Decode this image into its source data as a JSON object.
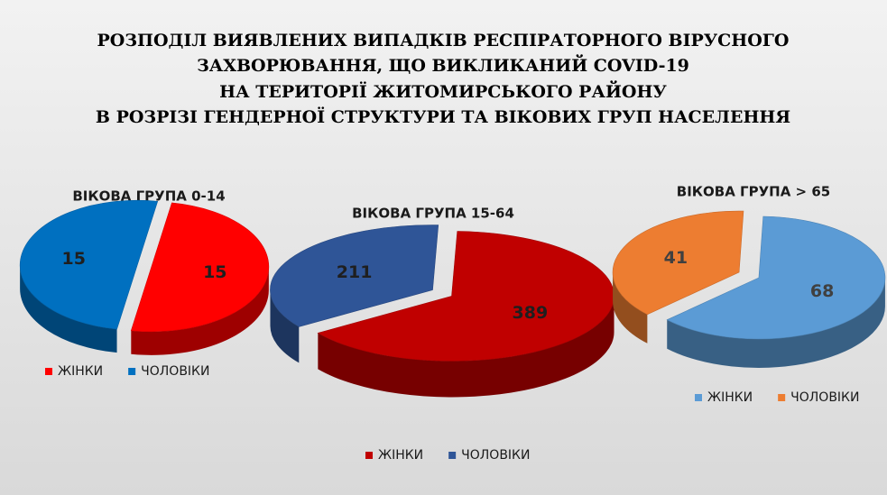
{
  "title": [
    "РОЗПОДІЛ ВИЯВЛЕНИХ ВИПАДКІВ РЕСПІРАТОРНОГО ВІРУСНОГО",
    "ЗАХВОРЮВАННЯ, ЩО ВИКЛИКАНИЙ COVID-19",
    "НА ТЕРИТОРІЇ ЖИТОМИРСЬКОГО РАЙОНУ",
    "В РОЗРІЗІ ГЕНДЕРНОЇ СТРУКТУРИ ТА ВІКОВИХ ГРУП НАСЕЛЕННЯ"
  ],
  "chart_data": [
    {
      "type": "pie",
      "title": "ВІКОВА ГРУПА 0-14",
      "categories": [
        "ЖІНКИ",
        "ЧОЛОВІКИ"
      ],
      "values": [
        15,
        15
      ],
      "colors": [
        "#ff0000",
        "#0070c0"
      ]
    },
    {
      "type": "pie",
      "title": "ВІКОВА ГРУПА 15-64",
      "categories": [
        "ЖІНКИ",
        "ЧОЛОВІКИ"
      ],
      "values": [
        389,
        211
      ],
      "colors": [
        "#c00000",
        "#2f5597"
      ]
    },
    {
      "type": "pie",
      "title": "ВІКОВА ГРУПА > 65",
      "categories": [
        "ЖІНКИ",
        "ЧОЛОВІКИ"
      ],
      "values": [
        68,
        41
      ],
      "colors": [
        "#5b9bd5",
        "#ed7d31"
      ]
    }
  ]
}
